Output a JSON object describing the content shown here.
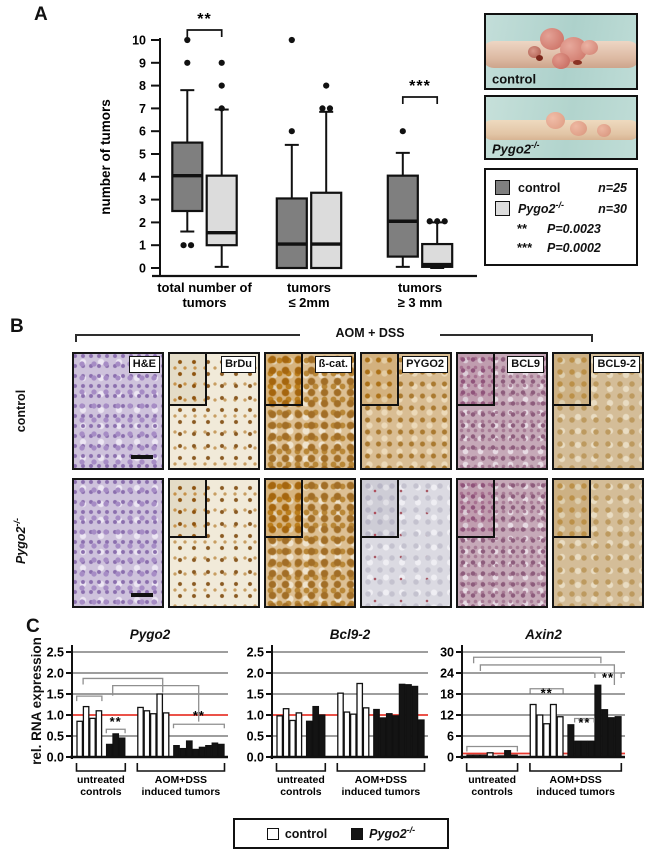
{
  "panel_a": {
    "label": "A",
    "photos": [
      {
        "label": "control",
        "sup": ""
      },
      {
        "label": "Pygo2",
        "sup": "-/-"
      }
    ],
    "legend": {
      "items": [
        {
          "label": "control",
          "sup": "",
          "n": "n=25",
          "swatch": "dark"
        },
        {
          "label": "Pygo2",
          "sup": "-/-",
          "n": "n=30",
          "swatch": "light"
        }
      ],
      "pvalues": [
        {
          "stars": "**",
          "text": "P=0.0023"
        },
        {
          "stars": "***",
          "text": "P=0.0002"
        }
      ]
    }
  },
  "panel_b": {
    "label": "B",
    "header": "AOM + DSS",
    "row_labels": [
      {
        "label": "control",
        "sup": "",
        "italic": false
      },
      {
        "label": "Pygo2",
        "sup": "-/-",
        "italic": true
      }
    ],
    "columns": [
      "H&E",
      "BrDu",
      "ß-cat.",
      "PYGO2",
      "BCL9",
      "BCL9-2"
    ],
    "rows": [
      {
        "name": "control",
        "stains": [
          "he",
          "brdu",
          "bcat",
          "pygo2hi",
          "bcl9",
          "bcl92"
        ]
      },
      {
        "name": "pygo2-ko",
        "stains": [
          "he",
          "brdu",
          "bcat",
          "pygo2lo",
          "bcl9",
          "bcl92"
        ]
      }
    ]
  },
  "panel_c": {
    "label": "C",
    "ylabel": "rel. RNA expression",
    "legend": [
      {
        "label": "control",
        "sup": "",
        "swatch": "white"
      },
      {
        "label": "Pygo2",
        "sup": "-/-",
        "swatch": "black"
      }
    ]
  },
  "colors": {
    "control_box": "#7f7f7f",
    "pygo2_box": "#dcdcdc",
    "reference_line": "#e8392f",
    "bar_control": "#ffffff",
    "bar_pygo2": "#141414",
    "photo_background": "#b8d8d3"
  },
  "chart_data": [
    {
      "type": "boxplot",
      "name": "tumor-counts",
      "ylabel": "number of tumors",
      "ylim": [
        0,
        10
      ],
      "yticks": [
        0,
        1,
        2,
        3,
        4,
        5,
        6,
        7,
        8,
        9,
        10
      ],
      "categories": [
        [
          "total number of",
          "tumors"
        ],
        [
          "tumors",
          "≤ 2mm"
        ],
        [
          "tumors",
          "≥ 3 mm"
        ]
      ],
      "series": [
        {
          "name": "control",
          "swatch": "dark",
          "boxes": [
            {
              "lo": 1.6,
              "q1": 2.5,
              "median": 4.05,
              "q3": 5.5,
              "hi": 7.8,
              "outliers": [
                1,
                1,
                9,
                10
              ]
            },
            {
              "lo": 0,
              "q1": 0,
              "median": 1.05,
              "q3": 3.05,
              "hi": 5.4,
              "outliers": [
                6,
                10
              ]
            },
            {
              "lo": 0.05,
              "q1": 0.5,
              "median": 2.05,
              "q3": 4.05,
              "hi": 5.05,
              "outliers": [
                6
              ]
            }
          ]
        },
        {
          "name": "Pygo2 -/-",
          "swatch": "light",
          "boxes": [
            {
              "lo": 0.05,
              "q1": 1.0,
              "median": 1.55,
              "q3": 4.05,
              "hi": 6.95,
              "outliers": [
                7,
                8,
                9
              ]
            },
            {
              "lo": 0,
              "q1": 0,
              "median": 1.05,
              "q3": 3.3,
              "hi": 6.85,
              "outliers": [
                7,
                7,
                8
              ]
            },
            {
              "lo": 0,
              "q1": 0.05,
              "median": 0.15,
              "q3": 1.05,
              "hi": 2.0,
              "outliers": [
                2.05,
                2.05,
                2.05
              ]
            }
          ]
        }
      ],
      "significance": [
        {
          "group": 0,
          "stars": "**",
          "y": 30
        },
        {
          "group": 2,
          "stars": "***",
          "y": 97
        }
      ]
    },
    {
      "type": "bar",
      "title": "Pygo2",
      "ylim": [
        0,
        2.7
      ],
      "yticks": [
        0,
        0.5,
        1.0,
        1.5,
        2.0,
        2.5
      ],
      "ytick_labels": [
        "0.0",
        "0.5",
        "1.0",
        "1.5",
        "2.0",
        "2.5"
      ],
      "ref_line": 1.0,
      "group_labels": [
        [
          "untreated",
          "controls"
        ],
        [
          "AOM+DSS",
          "induced  tumors"
        ]
      ],
      "series": [
        {
          "name": "control untreated",
          "fill": "white",
          "values": [
            0.85,
            1.2,
            0.92,
            1.1
          ]
        },
        {
          "name": "Pygo2-/- untreated",
          "fill": "black",
          "values": [
            0.3,
            0.55,
            0.45
          ]
        },
        {
          "name": "control AOM+DSS",
          "fill": "white",
          "values": [
            1.18,
            1.1,
            1.03,
            1.5,
            1.05
          ]
        },
        {
          "name": "Pygo2-/- AOM+DSS",
          "fill": "black",
          "values": [
            0.27,
            0.2,
            0.38,
            0.18,
            0.23,
            0.27,
            0.33,
            0.3
          ]
        }
      ],
      "annotations": [
        {
          "from": [
            0,
            0
          ],
          "to": [
            0,
            3
          ],
          "v": 1.45,
          "t1": 5,
          "t2": 5
        },
        {
          "from": [
            0,
            1
          ],
          "to": [
            2,
            3
          ],
          "v": 1.87,
          "t1": 6,
          "t2": 14
        },
        {
          "from": [
            1,
            1
          ],
          "to": [
            3,
            3
          ],
          "v": 1.7,
          "t1": 10,
          "t2": 36
        },
        {
          "from": [
            1,
            0
          ],
          "to": [
            1,
            2
          ],
          "v": 0.66,
          "t1": 4,
          "t2": 4,
          "label": "**",
          "lv": 0.74
        },
        {
          "from": [
            3,
            0
          ],
          "to": [
            3,
            7
          ],
          "v": 0.78,
          "t1": 4,
          "t2": 4,
          "label": "**",
          "lv": 0.88
        }
      ]
    },
    {
      "type": "bar",
      "title": "Bcl9-2",
      "ylim": [
        0,
        2.7
      ],
      "yticks": [
        0,
        0.5,
        1.0,
        1.5,
        2.0,
        2.5
      ],
      "ytick_labels": [
        "0.0",
        "0.5",
        "1.0",
        "1.5",
        "2.0",
        "2.5"
      ],
      "ref_line": 1.0,
      "group_labels": [
        [
          "untreated",
          "controls"
        ],
        [
          "AOM+DSS",
          "induced  tumors"
        ]
      ],
      "series": [
        {
          "name": "control untreated",
          "fill": "white",
          "values": [
            0.98,
            1.15,
            0.87,
            1.05
          ]
        },
        {
          "name": "Pygo2-/- untreated",
          "fill": "black",
          "values": [
            0.85,
            1.2,
            1.0
          ]
        },
        {
          "name": "control AOM+DSS",
          "fill": "white",
          "values": [
            1.52,
            1.07,
            1.02,
            1.75,
            1.17
          ]
        },
        {
          "name": "Pygo2-/- AOM+DSS",
          "fill": "black",
          "values": [
            1.13,
            0.93,
            1.03,
            0.98,
            1.73,
            1.72,
            1.68,
            0.88
          ]
        }
      ],
      "annotations": []
    },
    {
      "type": "bar",
      "title": "Axin2",
      "ylim": [
        0,
        32
      ],
      "yticks": [
        0,
        6,
        12,
        18,
        24,
        30
      ],
      "ytick_labels": [
        "0",
        "6",
        "12",
        "18",
        "24",
        "30"
      ],
      "ref_line": 1,
      "group_labels": [
        [
          "untreated",
          "controls"
        ],
        [
          "AOM+DSS",
          "induced  tumors"
        ]
      ],
      "series": [
        {
          "name": "control untreated",
          "fill": "white",
          "values": [
            0.5,
            0.5,
            0.5,
            1.2
          ]
        },
        {
          "name": "Pygo2-/- untreated",
          "fill": "black",
          "values": [
            0.3,
            1.8,
            0.5
          ]
        },
        {
          "name": "control AOM+DSS",
          "fill": "white",
          "values": [
            15,
            12,
            9.5,
            15,
            11.5
          ]
        },
        {
          "name": "Pygo2-/- AOM+DSS",
          "fill": "black",
          "values": [
            9.2,
            4.5,
            4.5,
            4.5,
            20.5,
            13.5,
            11.2,
            11.5
          ]
        }
      ],
      "annotations": [
        {
          "from": [
            0,
            0
          ],
          "to": [
            1,
            2
          ],
          "v": 3,
          "t1": 5,
          "t2": 5
        },
        {
          "from": [
            0,
            1
          ],
          "to": [
            3,
            4
          ],
          "v": 28.5,
          "t1": 6,
          "t2": 6
        },
        {
          "from": [
            0,
            2
          ],
          "to": [
            3,
            6
          ],
          "v": 26.3,
          "t1": 6,
          "t2": 20
        },
        {
          "from": [
            2,
            0
          ],
          "to": [
            2,
            4
          ],
          "v": 19.5,
          "t1": 5,
          "t2": 5,
          "label": "**",
          "lv": 17.0
        },
        {
          "from": [
            3,
            1
          ],
          "to": [
            3,
            3
          ],
          "v": 11,
          "t1": 4,
          "t2": 4,
          "label": "**",
          "lv": 8.6
        },
        {
          "from": [
            3,
            4
          ],
          "to": [
            3,
            7
          ],
          "v": 24,
          "t1": 5,
          "t2": 5,
          "label": "**",
          "lv": 21.4
        }
      ]
    }
  ]
}
